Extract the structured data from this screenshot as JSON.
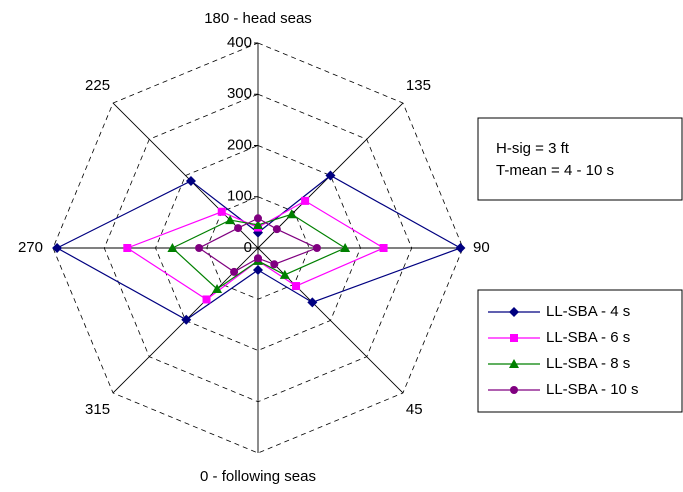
{
  "chart_data": {
    "type": "radar",
    "categories": [
      "180 - head seas",
      "135",
      "90",
      "45",
      "0 - following seas",
      "315",
      "270",
      "225"
    ],
    "ylim": [
      0,
      400
    ],
    "yticks": [
      0,
      100,
      200,
      300,
      400
    ],
    "grid": true,
    "annotations": [
      "H-sig = 3 ft",
      "T-mean = 4 - 10 s"
    ],
    "series": [
      {
        "name": "LL-SBA - 4 s",
        "color": "#000080",
        "marker": "diamond",
        "values": [
          30,
          200,
          395,
          150,
          43,
          198,
          392,
          185
        ]
      },
      {
        "name": "LL-SBA - 6 s",
        "color": "#ff00ff",
        "marker": "square",
        "values": [
          40,
          130,
          245,
          105,
          25,
          142,
          255,
          100
        ]
      },
      {
        "name": "LL-SBA - 8 s",
        "color": "#008000",
        "marker": "triangle",
        "values": [
          45,
          93,
          170,
          74,
          25,
          113,
          167,
          77
        ]
      },
      {
        "name": "LL-SBA - 10 s",
        "color": "#800080",
        "marker": "circle",
        "values": [
          58,
          52,
          115,
          45,
          20,
          66,
          115,
          55
        ]
      }
    ]
  }
}
